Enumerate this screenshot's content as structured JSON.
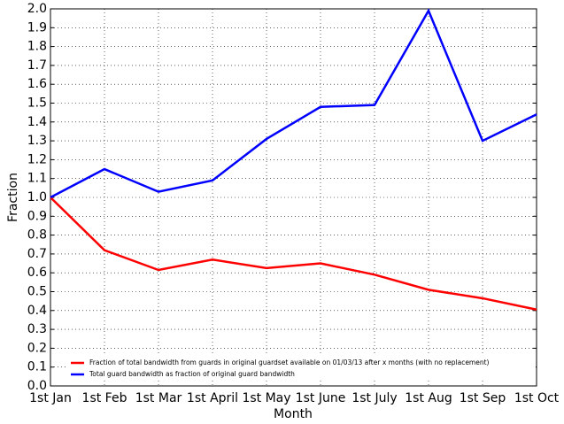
{
  "chart_data": {
    "type": "line",
    "x_label": "Month",
    "y_label": "Fraction",
    "categories": [
      "1st Jan",
      "1st Feb",
      "1st Mar",
      "1st April",
      "1st May",
      "1st June",
      "1st July",
      "1st Aug",
      "1st Sep",
      "1st Oct"
    ],
    "series": [
      {
        "name": "Fraction of total bandwidth from guards in original guardset available on 01/03/13 after x months (with no replacement)",
        "color": "#ff0000",
        "values": [
          1.0,
          0.72,
          0.615,
          0.67,
          0.625,
          0.65,
          0.59,
          0.51,
          0.465,
          0.405
        ]
      },
      {
        "name": "Total guard bandwidth as fraction of original guard bandwidth",
        "color": "#0000ff",
        "values": [
          1.0,
          1.15,
          1.03,
          1.09,
          1.31,
          1.48,
          1.49,
          1.99,
          1.3,
          1.44
        ]
      }
    ],
    "ylim": [
      0,
      2
    ],
    "yticks": [
      {
        "value": 0,
        "label": "0.0"
      },
      0.1,
      0.2,
      0.3,
      0.4,
      0.5,
      0.6,
      0.7,
      0.8,
      0.9,
      {
        "value": 1,
        "label": "1.0"
      },
      1.1,
      1.2,
      1.3,
      1.4,
      1.5,
      1.6,
      1.7,
      1.8,
      1.9,
      {
        "value": 2,
        "label": "2.0"
      }
    ],
    "grid": true,
    "legend": "lower left"
  }
}
